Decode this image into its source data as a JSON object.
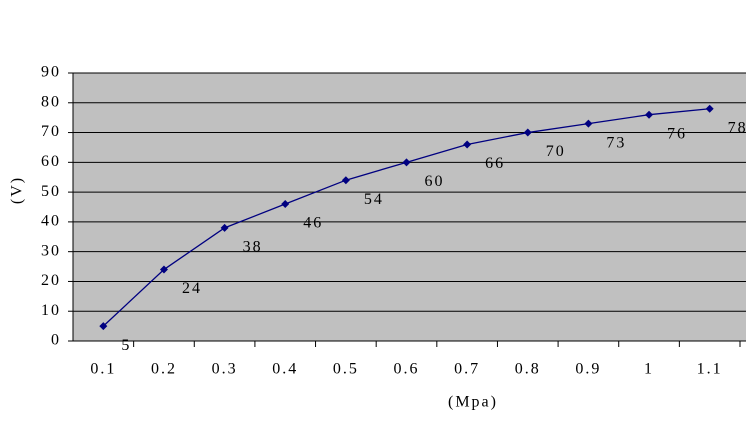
{
  "chart_data": {
    "type": "line",
    "x_label": "(Mpa)",
    "y_label": "(V)",
    "categories": [
      "0.1",
      "0.2",
      "0.3",
      "0.4",
      "0.5",
      "0.6",
      "0.7",
      "0.8",
      "0.9",
      "1",
      "1.1"
    ],
    "series": [
      {
        "color": "#000080",
        "values": [
          5,
          24,
          38,
          46,
          54,
          60,
          66,
          70,
          73,
          76,
          78
        ]
      }
    ],
    "ylim": [
      0,
      90
    ],
    "yticks": [
      0,
      10,
      20,
      30,
      40,
      50,
      60,
      70,
      80,
      90
    ],
    "grid": true,
    "background": "#c0c0c0"
  }
}
